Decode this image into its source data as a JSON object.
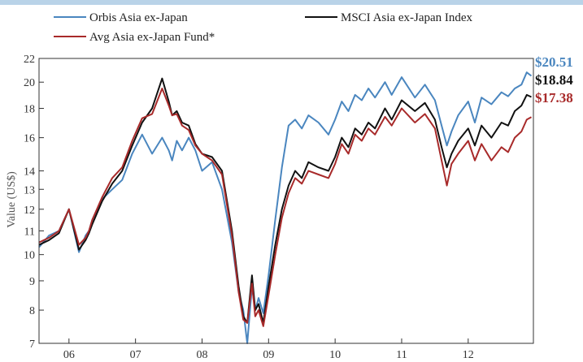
{
  "chart_data": {
    "type": "line",
    "title": "",
    "xlabel": "",
    "ylabel": "Value (US$)",
    "yscale": "log",
    "ylim": [
      7,
      22
    ],
    "xlim": [
      2005.55,
      2012.98
    ],
    "y_ticks": [
      7,
      8,
      9,
      10,
      11,
      12,
      13,
      14,
      16,
      18,
      20,
      22
    ],
    "x_tick_labels": [
      "06",
      "07",
      "08",
      "09",
      "10",
      "11",
      "12"
    ],
    "x_tick_positions": [
      2006.0,
      2007.0,
      2008.0,
      2009.0,
      2010.0,
      2011.0,
      2012.0
    ],
    "x_label_positions": [
      2006.0,
      2007.0,
      2008.0,
      2009.0,
      2010.0,
      2011.0,
      2012.0
    ],
    "legend_placement": "top",
    "grid": false,
    "series": [
      {
        "name": "Orbis Asia ex-Japan",
        "color": "#4a86bf",
        "end_label": "$20.51",
        "x": [
          2005.55,
          2005.7,
          2005.85,
          2006.0,
          2006.15,
          2006.25,
          2006.3,
          2006.35,
          2006.5,
          2006.65,
          2006.8,
          2006.95,
          2007.1,
          2007.25,
          2007.4,
          2007.5,
          2007.55,
          2007.62,
          2007.7,
          2007.8,
          2007.9,
          2008.0,
          2008.15,
          2008.3,
          2008.45,
          2008.55,
          2008.62,
          2008.68,
          2008.75,
          2008.8,
          2008.85,
          2008.92,
          2009.0,
          2009.1,
          2009.2,
          2009.3,
          2009.4,
          2009.5,
          2009.6,
          2009.75,
          2009.9,
          2010.0,
          2010.1,
          2010.2,
          2010.3,
          2010.4,
          2010.5,
          2010.6,
          2010.75,
          2010.85,
          2011.0,
          2011.2,
          2011.35,
          2011.5,
          2011.6,
          2011.68,
          2011.75,
          2011.85,
          2012.0,
          2012.1,
          2012.2,
          2012.35,
          2012.5,
          2012.6,
          2012.7,
          2012.8,
          2012.88,
          2012.95
        ],
        "values": [
          10.3,
          10.8,
          11.0,
          12.0,
          10.1,
          10.8,
          11.0,
          11.5,
          12.5,
          13.0,
          13.5,
          15.0,
          16.2,
          15.0,
          16.0,
          15.2,
          14.6,
          15.8,
          15.2,
          16.0,
          15.2,
          14.0,
          14.5,
          13.0,
          10.5,
          8.6,
          8.0,
          7.0,
          8.8,
          8.0,
          8.4,
          7.9,
          9.2,
          11.5,
          14.2,
          16.8,
          17.2,
          16.6,
          17.5,
          17.0,
          16.2,
          17.2,
          18.5,
          17.8,
          19.0,
          18.6,
          19.5,
          18.8,
          20.0,
          19.0,
          20.4,
          18.8,
          19.8,
          18.6,
          16.8,
          15.5,
          16.4,
          17.5,
          18.5,
          17.0,
          18.8,
          18.3,
          19.2,
          18.9,
          19.5,
          19.8,
          20.8,
          20.51
        ]
      },
      {
        "name": "MSCI Asia ex-Japan Index",
        "color": "#111111",
        "end_label": "$18.84",
        "x": [
          2005.55,
          2005.7,
          2005.85,
          2006.0,
          2006.15,
          2006.25,
          2006.3,
          2006.35,
          2006.5,
          2006.65,
          2006.8,
          2006.95,
          2007.1,
          2007.25,
          2007.4,
          2007.5,
          2007.55,
          2007.62,
          2007.7,
          2007.8,
          2007.9,
          2008.0,
          2008.15,
          2008.3,
          2008.45,
          2008.55,
          2008.62,
          2008.68,
          2008.75,
          2008.8,
          2008.85,
          2008.92,
          2009.0,
          2009.1,
          2009.2,
          2009.3,
          2009.4,
          2009.5,
          2009.6,
          2009.75,
          2009.9,
          2010.0,
          2010.1,
          2010.2,
          2010.3,
          2010.4,
          2010.5,
          2010.6,
          2010.75,
          2010.85,
          2011.0,
          2011.2,
          2011.35,
          2011.5,
          2011.6,
          2011.68,
          2011.75,
          2011.85,
          2012.0,
          2012.1,
          2012.2,
          2012.35,
          2012.5,
          2012.6,
          2012.7,
          2012.8,
          2012.88,
          2012.95
        ],
        "values": [
          10.4,
          10.6,
          10.9,
          12.0,
          10.2,
          10.6,
          10.9,
          11.3,
          12.4,
          13.3,
          14.0,
          15.5,
          17.0,
          18.0,
          20.3,
          18.5,
          17.5,
          17.8,
          17.0,
          16.8,
          15.6,
          15.0,
          14.8,
          14.0,
          11.0,
          8.8,
          7.8,
          7.6,
          9.2,
          8.0,
          8.2,
          7.6,
          8.8,
          10.4,
          12.0,
          13.2,
          14.0,
          13.6,
          14.5,
          14.2,
          14.0,
          14.8,
          16.0,
          15.4,
          16.6,
          16.2,
          17.0,
          16.6,
          18.0,
          17.2,
          18.6,
          17.8,
          18.4,
          17.2,
          15.4,
          14.2,
          15.0,
          15.8,
          16.6,
          15.5,
          16.8,
          16.0,
          17.0,
          16.8,
          17.8,
          18.2,
          19.0,
          18.84
        ]
      },
      {
        "name": "Avg Asia ex-Japan Fund*",
        "color": "#a82a2a",
        "end_label": "$17.38",
        "x": [
          2005.55,
          2005.7,
          2005.85,
          2006.0,
          2006.15,
          2006.25,
          2006.3,
          2006.35,
          2006.5,
          2006.65,
          2006.8,
          2006.95,
          2007.1,
          2007.25,
          2007.4,
          2007.5,
          2007.55,
          2007.62,
          2007.7,
          2007.8,
          2007.9,
          2008.0,
          2008.15,
          2008.3,
          2008.45,
          2008.55,
          2008.62,
          2008.68,
          2008.75,
          2008.8,
          2008.85,
          2008.92,
          2009.0,
          2009.1,
          2009.2,
          2009.3,
          2009.4,
          2009.5,
          2009.6,
          2009.75,
          2009.9,
          2010.0,
          2010.1,
          2010.2,
          2010.3,
          2010.4,
          2010.5,
          2010.6,
          2010.75,
          2010.85,
          2011.0,
          2011.2,
          2011.35,
          2011.5,
          2011.6,
          2011.68,
          2011.75,
          2011.85,
          2012.0,
          2012.1,
          2012.2,
          2012.35,
          2012.5,
          2012.6,
          2012.7,
          2012.8,
          2012.88,
          2012.95
        ],
        "values": [
          10.5,
          10.7,
          11.0,
          12.0,
          10.4,
          10.7,
          11.0,
          11.5,
          12.6,
          13.6,
          14.2,
          15.8,
          17.3,
          17.6,
          19.5,
          18.2,
          17.5,
          17.6,
          16.8,
          16.5,
          15.5,
          15.0,
          14.6,
          13.8,
          10.8,
          8.6,
          7.7,
          7.6,
          8.9,
          7.8,
          8.0,
          7.5,
          8.5,
          10.0,
          11.6,
          12.8,
          13.6,
          13.3,
          14.0,
          13.8,
          13.6,
          14.4,
          15.6,
          15.0,
          16.2,
          15.8,
          16.6,
          16.2,
          17.4,
          16.8,
          18.0,
          17.0,
          17.6,
          16.6,
          14.6,
          13.2,
          14.4,
          15.0,
          15.8,
          14.6,
          15.6,
          14.6,
          15.4,
          15.1,
          16.0,
          16.4,
          17.2,
          17.38
        ]
      }
    ]
  }
}
